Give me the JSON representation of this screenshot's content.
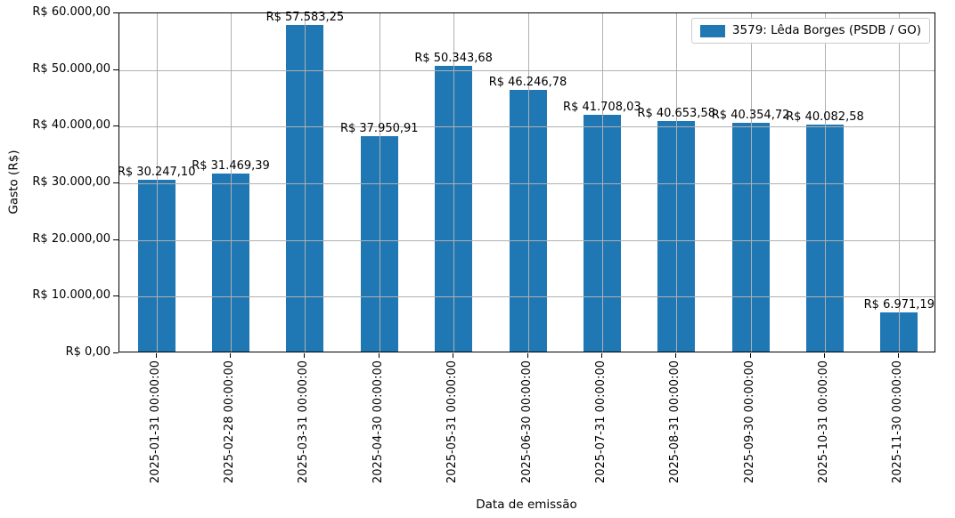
{
  "chart_data": {
    "type": "bar",
    "title": "",
    "xlabel": "Data de emissão",
    "ylabel": "Gasto (R$)",
    "legend": {
      "label": "3579: Lêda Borges (PSDB / GO)",
      "position": "upper right"
    },
    "grid": true,
    "ylim": [
      0,
      60000
    ],
    "categories": [
      "2025-01-31 00:00:00",
      "2025-02-28 00:00:00",
      "2025-03-31 00:00:00",
      "2025-04-30 00:00:00",
      "2025-05-31 00:00:00",
      "2025-06-30 00:00:00",
      "2025-07-31 00:00:00",
      "2025-08-31 00:00:00",
      "2025-09-30 00:00:00",
      "2025-10-31 00:00:00",
      "2025-11-30 00:00:00"
    ],
    "values": [
      30247.1,
      31469.39,
      57583.25,
      37950.91,
      50343.68,
      46246.78,
      41708.03,
      40653.58,
      40354.72,
      40082.58,
      6971.19
    ],
    "bar_labels": [
      "R$ 30.247,10",
      "R$ 31.469,39",
      "R$ 57.583,25",
      "R$ 37.950,91",
      "R$ 50.343,68",
      "R$ 46.246,78",
      "R$ 41.708,03",
      "R$ 40.653,58",
      "R$ 40.354,72",
      "R$ 40.082,58",
      "R$ 6.971,19"
    ],
    "yticks": [
      {
        "value": 0,
        "label": "R$ 0,00"
      },
      {
        "value": 10000,
        "label": "R$ 10.000,00"
      },
      {
        "value": 20000,
        "label": "R$ 20.000,00"
      },
      {
        "value": 30000,
        "label": "R$ 30.000,00"
      },
      {
        "value": 40000,
        "label": "R$ 40.000,00"
      },
      {
        "value": 50000,
        "label": "R$ 50.000,00"
      },
      {
        "value": 60000,
        "label": "R$ 60.000,00"
      }
    ],
    "colors": {
      "bar": "#1f77b4",
      "grid": "#b0b0b0",
      "spine": "#000000",
      "text": "#000000",
      "legend_border": "#cccccc",
      "background": "#ffffff"
    }
  }
}
